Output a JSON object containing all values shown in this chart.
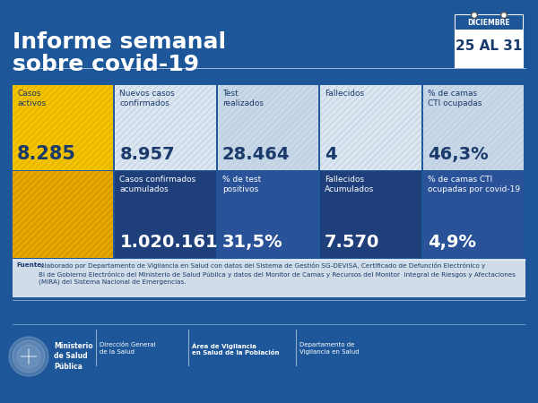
{
  "bg_color": "#1e5799",
  "title_line1": "Informe semanal",
  "title_line2": "sobre covid-19",
  "calendar_month": "DICIEMBRE",
  "calendar_dates": "25 AL 31",
  "top_row": [
    {
      "label": "Casos\nactivos",
      "value": "8.285",
      "bg": "#f5c400",
      "label_color": "#1a3a6b",
      "value_color": "#1a3a6b",
      "is_yellow": true,
      "hatched": true
    },
    {
      "label": "Nuevos casos\nconfirmados",
      "value": "8.957",
      "bg": "#dce6f0",
      "label_color": "#1a3a6b",
      "value_color": "#1a3a6b",
      "is_yellow": false,
      "hatched": true
    },
    {
      "label": "Test\nrealizados",
      "value": "28.464",
      "bg": "#c8d8e8",
      "label_color": "#1a3a6b",
      "value_color": "#1a3a6b",
      "is_yellow": false,
      "hatched": true
    },
    {
      "label": "Fallecidos",
      "value": "4",
      "bg": "#dce6f0",
      "label_color": "#1a3a6b",
      "value_color": "#1a3a6b",
      "is_yellow": false,
      "hatched": true
    },
    {
      "label": "% de camas\nCTI ocupadas",
      "value": "46,3%",
      "bg": "#c8d8e8",
      "label_color": "#1a3a6b",
      "value_color": "#1a3a6b",
      "is_yellow": false,
      "hatched": true
    }
  ],
  "bottom_row": [
    {
      "label": "",
      "value": "",
      "bg": "#e8a800",
      "label_color": "#ffffff",
      "value_color": "#ffffff",
      "is_yellow": true,
      "hatched": true
    },
    {
      "label": "Casos confirmados\nacumulados",
      "value": "1.020.161",
      "bg": "#1e3f7a",
      "label_color": "#ffffff",
      "value_color": "#ffffff",
      "is_yellow": false,
      "hatched": false
    },
    {
      "label": "% de test\npositivos",
      "value": "31,5%",
      "bg": "#2a5298",
      "label_color": "#ffffff",
      "value_color": "#ffffff",
      "is_yellow": false,
      "hatched": false
    },
    {
      "label": "Fallecidos\nAcumulados",
      "value": "7.570",
      "bg": "#1e3f7a",
      "label_color": "#ffffff",
      "value_color": "#ffffff",
      "is_yellow": false,
      "hatched": false
    },
    {
      "label": "% de camas CTI\nocupadas por covid-19",
      "value": "4,9%",
      "bg": "#2a5298",
      "label_color": "#ffffff",
      "value_color": "#ffffff",
      "is_yellow": false,
      "hatched": false
    }
  ],
  "fuente_bold": "Fuente:",
  "fuente_text": " elaborado por Departamento de Vigilancia en Salud con datos del Sistema de Gestión SG-DEVISA, Certificado de Defunción Electrónico y\nBi de Gobierno Electrónico del Ministerio de Salud Pública y datos del Monitor de Camas y Recursos del Monitor  Integral de Riesgos y Afectaciones\n(MIRA) del Sistema Nacional de Emergencias.",
  "footer_text1": "Ministerio\nde Salud\nPública",
  "footer_text2": "Dirección General\nde la Salud",
  "footer_text3": "Área de Vigilancia\nen Salud de la Población",
  "footer_text4": "Departamento de\nVigilancia en Salud"
}
